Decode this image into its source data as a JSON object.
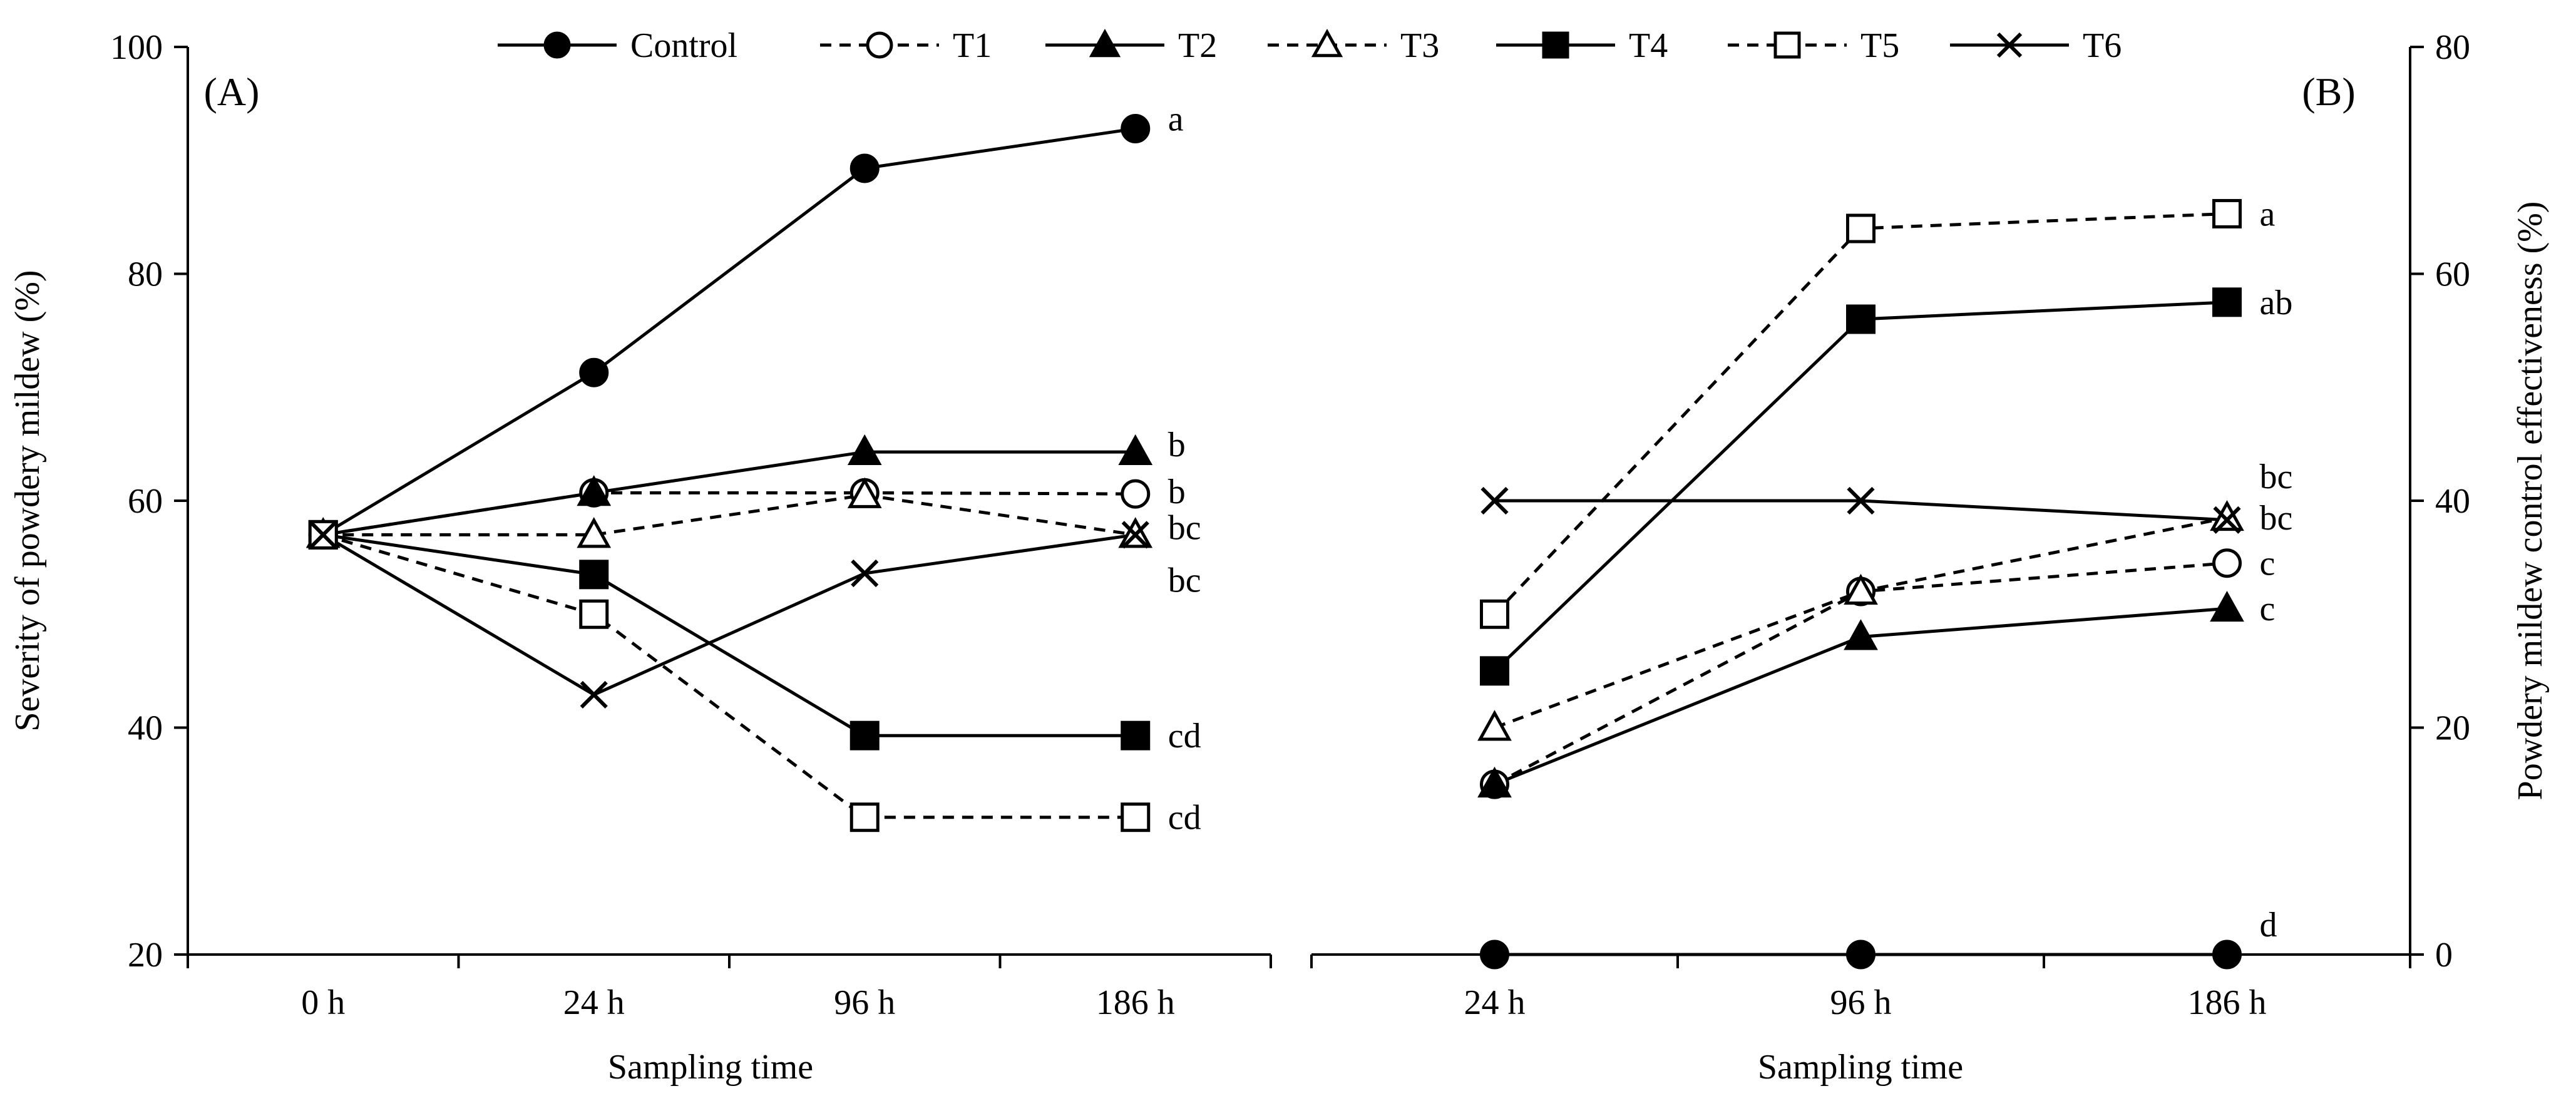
{
  "colors": {
    "ink": "#000000",
    "background": "#ffffff"
  },
  "legend": [
    "Control",
    "T1",
    "T2",
    "T3",
    "T4",
    "T5",
    "T6"
  ],
  "chart_data": [
    {
      "type": "line",
      "panel_label": "(A)",
      "xlabel": "Sampling time",
      "ylabel": "Severity of powdery mildew (%)",
      "categories": [
        "0 h",
        "24 h",
        "96 h",
        "186 h"
      ],
      "ylim": [
        20,
        100
      ],
      "yticks": [
        20,
        40,
        60,
        80,
        100
      ],
      "y_axis_side": "left",
      "series": [
        {
          "name": "Control",
          "values": [
            57,
            71.3,
            89.3,
            92.8
          ],
          "label": "a"
        },
        {
          "name": "T1",
          "values": [
            57,
            60.7,
            60.7,
            60.6
          ],
          "label": "b"
        },
        {
          "name": "T2",
          "values": [
            57,
            60.7,
            64.3,
            64.3
          ],
          "label": "b"
        },
        {
          "name": "T3",
          "values": [
            57,
            57,
            60.5,
            57
          ],
          "label": "bc"
        },
        {
          "name": "T4",
          "values": [
            57,
            53.5,
            39.3,
            39.3
          ],
          "label": "cd"
        },
        {
          "name": "T5",
          "values": [
            57,
            50,
            32.1,
            32.1
          ],
          "label": "cd"
        },
        {
          "name": "T6",
          "values": [
            57,
            42.9,
            53.6,
            57
          ],
          "label": "bc"
        }
      ]
    },
    {
      "type": "line",
      "panel_label": "(B)",
      "xlabel": "Sampling time",
      "ylabel": "Powdery mildew control effectiveness (%)",
      "categories": [
        "24 h",
        "96 h",
        "186 h"
      ],
      "ylim": [
        0,
        80
      ],
      "yticks": [
        0,
        20,
        40,
        60,
        80
      ],
      "y_axis_side": "right",
      "series": [
        {
          "name": "Control",
          "values": [
            0,
            0,
            0
          ],
          "label": "d"
        },
        {
          "name": "T1",
          "values": [
            15,
            32,
            34.5
          ],
          "label": "c"
        },
        {
          "name": "T2",
          "values": [
            15,
            28,
            30.5
          ],
          "label": "c"
        },
        {
          "name": "T3",
          "values": [
            20,
            32,
            38.5
          ],
          "label": "bc"
        },
        {
          "name": "T4",
          "values": [
            25,
            56,
            57.5
          ],
          "label": "ab"
        },
        {
          "name": "T5",
          "values": [
            30,
            64,
            65.3
          ],
          "label": "a"
        },
        {
          "name": "T6",
          "values": [
            40,
            40,
            38.3
          ],
          "label": "bc"
        }
      ]
    }
  ]
}
